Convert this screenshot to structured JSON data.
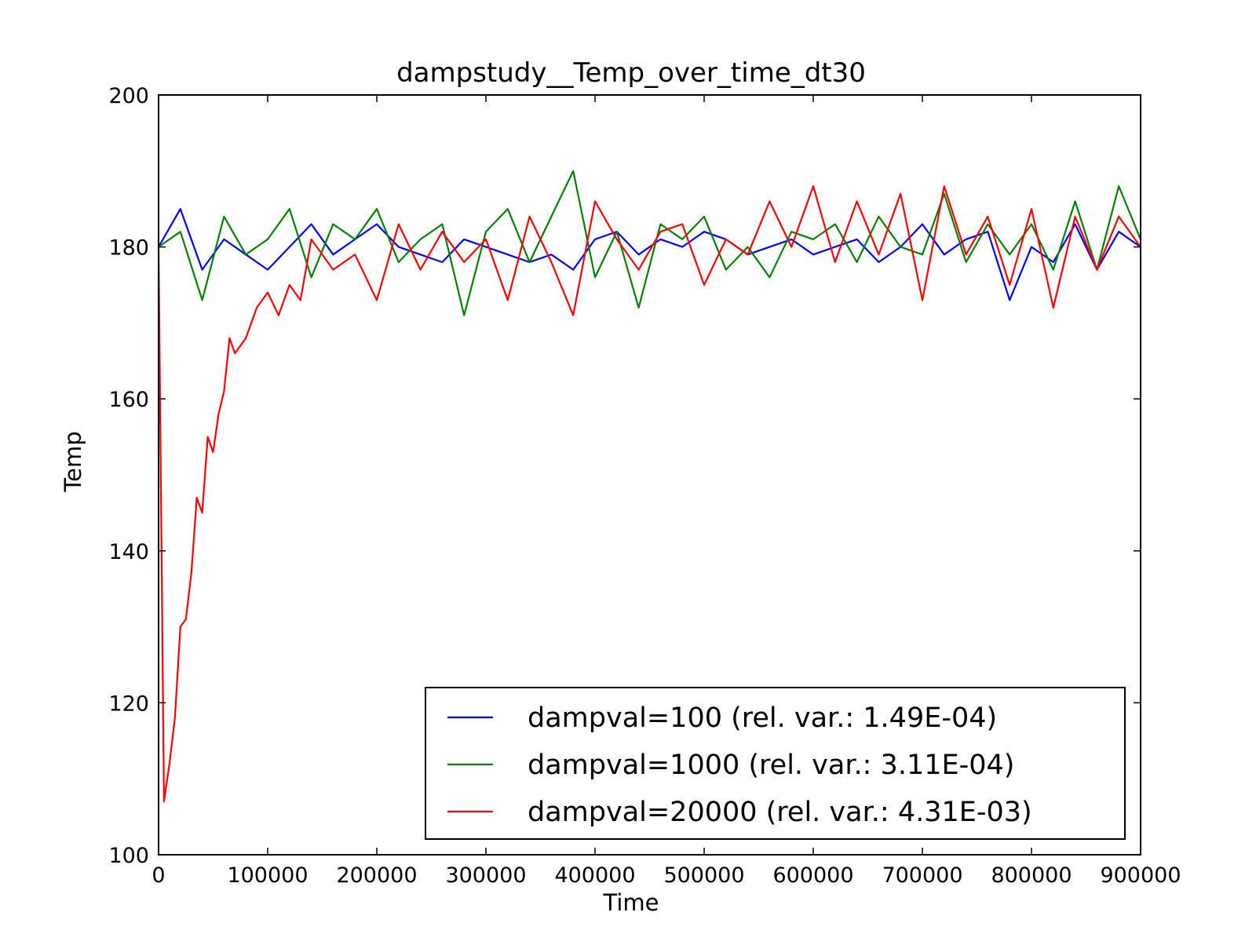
{
  "chart_data": {
    "type": "line",
    "title": "dampstudy__Temp_over_time_dt30",
    "xlabel": "Time",
    "ylabel": "Temp",
    "xlim": [
      0,
      900000
    ],
    "ylim": [
      100,
      200
    ],
    "xticks": [
      0,
      100000,
      200000,
      300000,
      400000,
      500000,
      600000,
      700000,
      800000,
      900000
    ],
    "xtick_labels": [
      "0",
      "100000",
      "200000",
      "300000",
      "400000",
      "500000",
      "600000",
      "700000",
      "800000",
      "900000"
    ],
    "yticks": [
      100,
      120,
      140,
      160,
      180,
      200
    ],
    "ytick_labels": [
      "100",
      "120",
      "140",
      "160",
      "180",
      "200"
    ],
    "grid": false,
    "legend_position": "lower-right",
    "series": [
      {
        "name": "dampval=100 (rel. var.: 1.49E-04)",
        "color": "#0000ff",
        "x": [
          0,
          20000,
          40000,
          60000,
          80000,
          100000,
          120000,
          140000,
          160000,
          180000,
          200000,
          220000,
          240000,
          260000,
          280000,
          300000,
          320000,
          340000,
          360000,
          380000,
          400000,
          420000,
          440000,
          460000,
          480000,
          500000,
          520000,
          540000,
          560000,
          580000,
          600000,
          620000,
          640000,
          660000,
          680000,
          700000,
          720000,
          740000,
          760000,
          780000,
          800000,
          820000,
          840000,
          860000,
          880000,
          900000
        ],
        "y": [
          180,
          185,
          177,
          181,
          179,
          177,
          180,
          183,
          179,
          181,
          183,
          180,
          179,
          178,
          181,
          180,
          179,
          178,
          179,
          177,
          181,
          182,
          179,
          181,
          180,
          182,
          181,
          179,
          180,
          181,
          179,
          180,
          181,
          178,
          180,
          183,
          179,
          181,
          182,
          173,
          180,
          178,
          183,
          177,
          182,
          180
        ]
      },
      {
        "name": "dampval=1000 (rel. var.: 3.11E-04)",
        "color": "#008000",
        "x": [
          0,
          20000,
          40000,
          60000,
          80000,
          100000,
          120000,
          140000,
          160000,
          180000,
          200000,
          220000,
          240000,
          260000,
          280000,
          300000,
          320000,
          340000,
          360000,
          380000,
          400000,
          420000,
          440000,
          460000,
          480000,
          500000,
          520000,
          540000,
          560000,
          580000,
          600000,
          620000,
          640000,
          660000,
          680000,
          700000,
          720000,
          740000,
          760000,
          780000,
          800000,
          820000,
          840000,
          860000,
          880000,
          900000
        ],
        "y": [
          180,
          182,
          173,
          184,
          179,
          181,
          185,
          176,
          183,
          181,
          185,
          178,
          181,
          183,
          171,
          182,
          185,
          178,
          184,
          190,
          176,
          182,
          172,
          183,
          181,
          184,
          177,
          180,
          176,
          182,
          181,
          183,
          178,
          184,
          180,
          179,
          187,
          178,
          183,
          179,
          183,
          177,
          186,
          177,
          188,
          181
        ]
      },
      {
        "name": "dampval=20000 (rel. var.: 4.31E-03)",
        "color": "#ff0000",
        "x": [
          0,
          5000,
          10000,
          15000,
          20000,
          25000,
          30000,
          35000,
          40000,
          45000,
          50000,
          55000,
          60000,
          65000,
          70000,
          80000,
          90000,
          100000,
          110000,
          120000,
          130000,
          140000,
          160000,
          180000,
          200000,
          220000,
          240000,
          260000,
          280000,
          300000,
          320000,
          340000,
          360000,
          380000,
          400000,
          420000,
          440000,
          460000,
          480000,
          500000,
          520000,
          540000,
          560000,
          580000,
          600000,
          620000,
          640000,
          660000,
          680000,
          700000,
          720000,
          740000,
          760000,
          780000,
          800000,
          820000,
          840000,
          860000,
          880000,
          900000
        ],
        "y": [
          180,
          107,
          112,
          118,
          130,
          131,
          137,
          147,
          145,
          155,
          153,
          158,
          161,
          168,
          166,
          168,
          172,
          174,
          171,
          175,
          173,
          181,
          177,
          179,
          173,
          183,
          177,
          182,
          178,
          181,
          173,
          184,
          178,
          171,
          186,
          181,
          177,
          182,
          183,
          175,
          181,
          179,
          186,
          180,
          188,
          178,
          186,
          179,
          187,
          173,
          188,
          179,
          184,
          175,
          185,
          172,
          184,
          177,
          184,
          180
        ]
      }
    ]
  }
}
